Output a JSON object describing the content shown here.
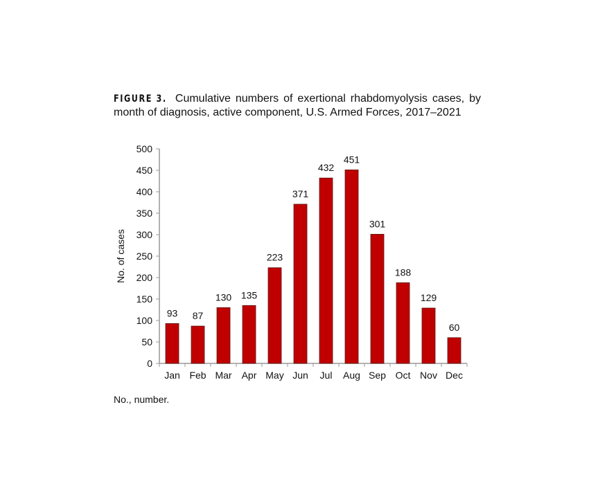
{
  "figure_label": "FIGURE 3.",
  "caption": "Cumulative numbers of exertional rhabdomyolysis cases, by month of diagnosis, active component, U.S. Armed Forces, 2017–2021",
  "footnote": "No., number.",
  "chart_data": {
    "type": "bar",
    "categories": [
      "Jan",
      "Feb",
      "Mar",
      "Apr",
      "May",
      "Jun",
      "Jul",
      "Aug",
      "Sep",
      "Oct",
      "Nov",
      "Dec"
    ],
    "values": [
      93,
      87,
      130,
      135,
      223,
      371,
      432,
      451,
      301,
      188,
      129,
      60
    ],
    "xlabel": "",
    "ylabel": "No. of cases",
    "ylim": [
      0,
      500
    ],
    "yticks": [
      0,
      50,
      100,
      150,
      200,
      250,
      300,
      350,
      400,
      450,
      500
    ],
    "grid": false,
    "data_labels": true,
    "bar_color": "#C00000"
  }
}
